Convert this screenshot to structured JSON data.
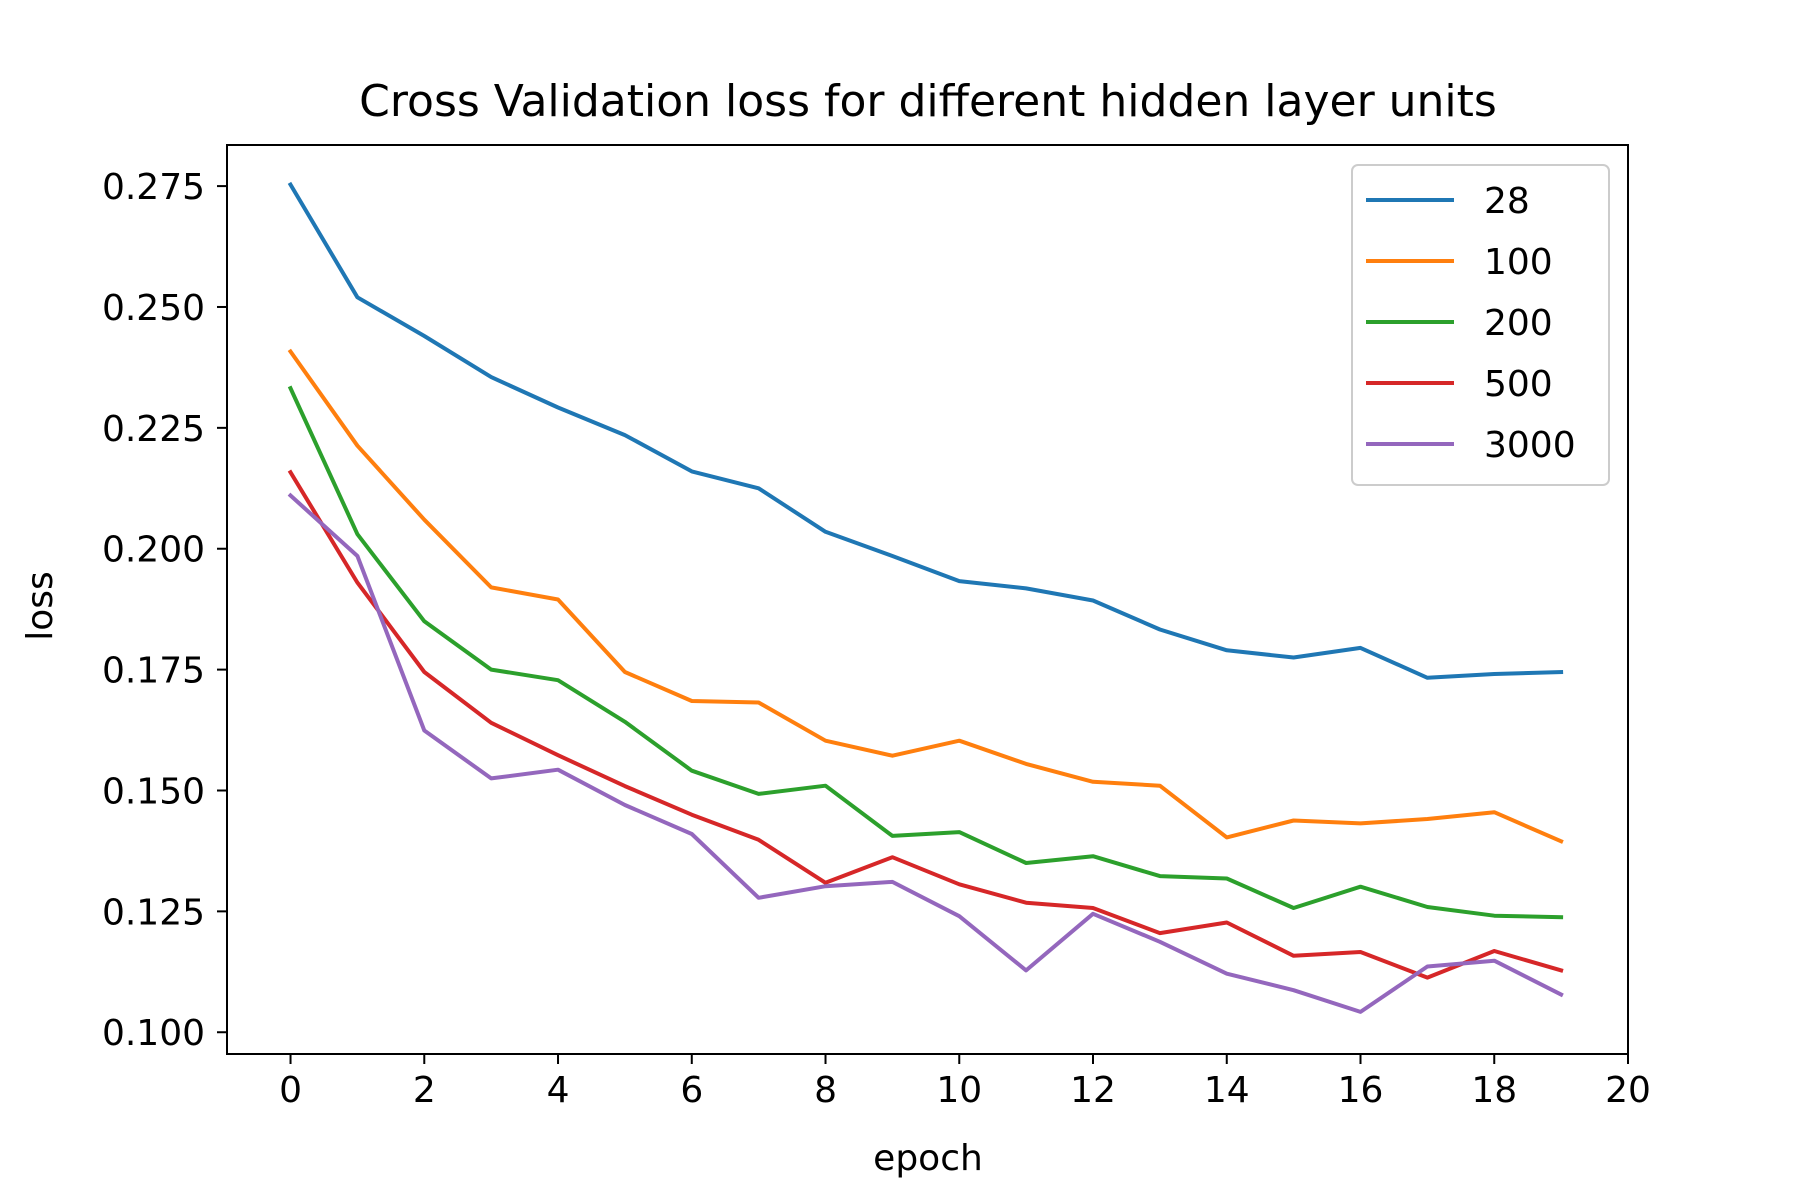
{
  "chart_data": {
    "type": "line",
    "title": "Cross Validation loss for different hidden layer units",
    "xlabel": "epoch",
    "ylabel": "loss",
    "xlim": [
      -0.95,
      20
    ],
    "ylim": [
      0.0955,
      0.2835
    ],
    "xticks": [
      0,
      2,
      4,
      6,
      8,
      10,
      12,
      14,
      16,
      18,
      20
    ],
    "xtick_labels": [
      "0",
      "2",
      "4",
      "6",
      "8",
      "10",
      "12",
      "14",
      "16",
      "18",
      "20"
    ],
    "yticks": [
      0.1,
      0.125,
      0.15,
      0.175,
      0.2,
      0.225,
      0.25,
      0.275
    ],
    "ytick_labels": [
      "0.100",
      "0.125",
      "0.150",
      "0.175",
      "0.200",
      "0.225",
      "0.250",
      "0.275"
    ],
    "grid": false,
    "legend_position": "top-right",
    "x": [
      0,
      1,
      2,
      3,
      4,
      5,
      6,
      7,
      8,
      9,
      10,
      11,
      12,
      13,
      14,
      15,
      16,
      17,
      18,
      19
    ],
    "series": [
      {
        "name": "28",
        "color": "#1f77b4",
        "values": [
          0.2753,
          0.252,
          0.244,
          0.2355,
          0.2292,
          0.2235,
          0.216,
          0.2125,
          0.2035,
          0.1985,
          0.1933,
          0.1918,
          0.1893,
          0.1833,
          0.179,
          0.1775,
          0.1795,
          0.1733,
          0.1741,
          0.1745
        ]
      },
      {
        "name": "100",
        "color": "#ff7f0e",
        "values": [
          0.2408,
          0.2213,
          0.206,
          0.192,
          0.1895,
          0.1745,
          0.1685,
          0.1682,
          0.1603,
          0.1572,
          0.1603,
          0.1555,
          0.1518,
          0.151,
          0.1403,
          0.1438,
          0.1432,
          0.1441,
          0.1455,
          0.1395
        ]
      },
      {
        "name": "200",
        "color": "#2ca02c",
        "values": [
          0.2332,
          0.203,
          0.185,
          0.175,
          0.1728,
          0.1642,
          0.1541,
          0.1493,
          0.151,
          0.1406,
          0.1414,
          0.135,
          0.1364,
          0.1323,
          0.1318,
          0.1257,
          0.1301,
          0.1259,
          0.1241,
          0.1238
        ]
      },
      {
        "name": "500",
        "color": "#d62728",
        "values": [
          0.2158,
          0.193,
          0.1745,
          0.164,
          0.1573,
          0.1509,
          0.145,
          0.1398,
          0.1309,
          0.1362,
          0.1306,
          0.1268,
          0.1257,
          0.1205,
          0.1227,
          0.1158,
          0.1166,
          0.1113,
          0.1168,
          0.1128
        ]
      },
      {
        "name": "3000",
        "color": "#9467bd",
        "values": [
          0.211,
          0.1985,
          0.1624,
          0.1525,
          0.1543,
          0.147,
          0.141,
          0.1278,
          0.1302,
          0.1311,
          0.124,
          0.1128,
          0.1245,
          0.1187,
          0.1121,
          0.1087,
          0.1042,
          0.1136,
          0.1148,
          0.1078
        ]
      }
    ]
  }
}
